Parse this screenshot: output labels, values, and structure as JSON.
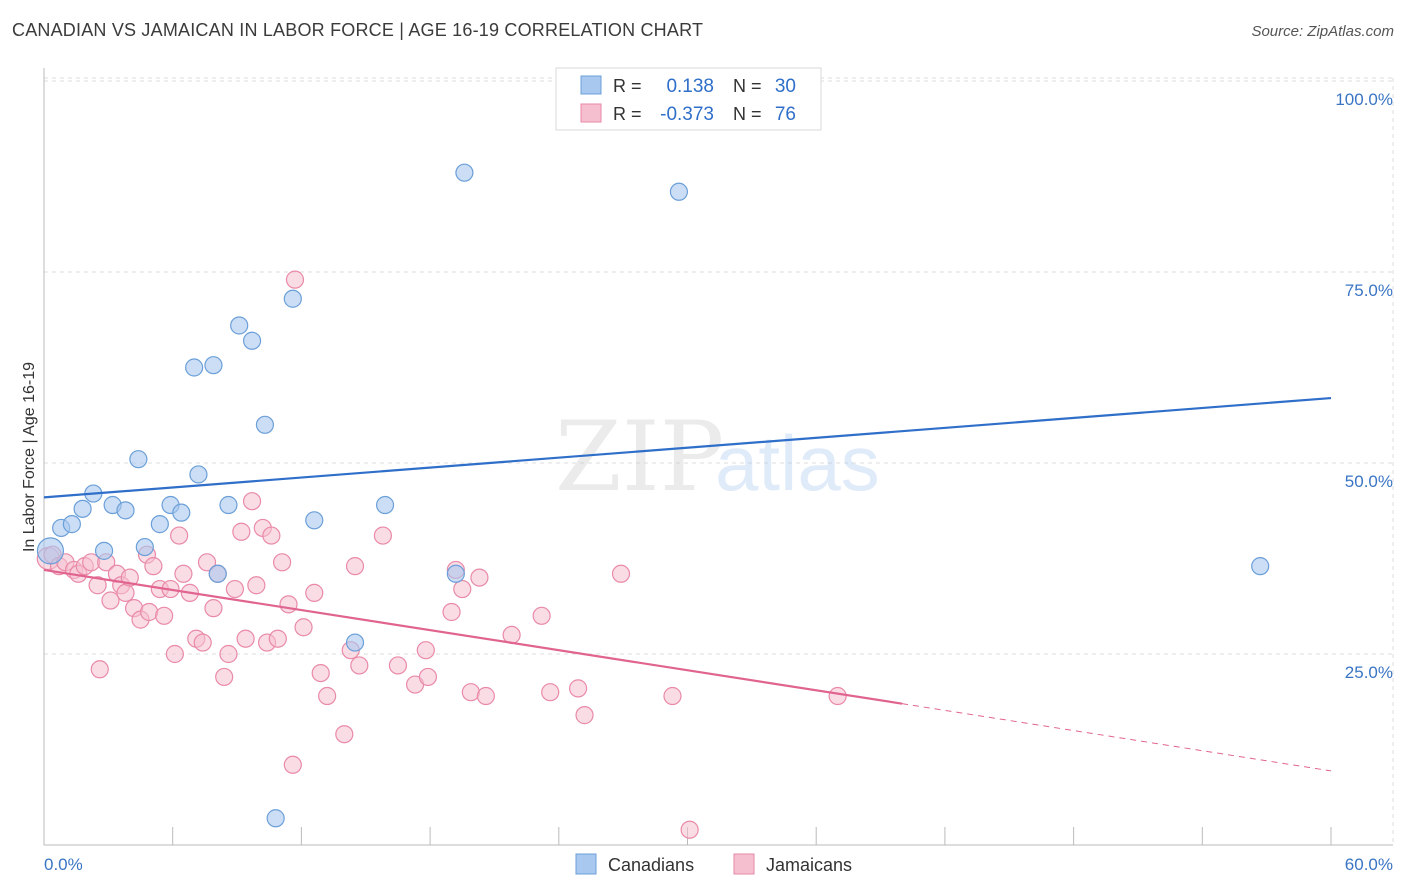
{
  "header": {
    "title": "CANADIAN VS JAMAICAN IN LABOR FORCE | AGE 16-19 CORRELATION CHART",
    "source": "Source: ZipAtlas.com"
  },
  "watermark": {
    "zip": "ZIP",
    "atlas": "atlas"
  },
  "colors": {
    "blue_fill": "#a9c8ef",
    "blue_stroke": "#6b9fd8",
    "blue_line": "#2f6fc9",
    "pink_fill": "#f6bfd0",
    "pink_stroke": "#e98aa8",
    "pink_line": "#e0648f",
    "tick_text": "#3a75c4",
    "grid": "#dddddd"
  },
  "chart_data": {
    "type": "scatter",
    "title": "CANADIAN VS JAMAICAN IN LABOR FORCE | AGE 16-19 CORRELATION CHART",
    "xlabel": "",
    "ylabel": "In Labor Force | Age 16-19",
    "xlim": [
      0,
      60
    ],
    "ylim": [
      0,
      105
    ],
    "x_tick_labels": [
      "0.0%",
      "60.0%"
    ],
    "y_ticks": [
      25,
      50,
      75,
      100
    ],
    "y_tick_labels": [
      "25.0%",
      "50.0%",
      "75.0%",
      "100.0%"
    ],
    "grid": true,
    "legend_position": "bottom-center",
    "stats_box": [
      {
        "r_label": "R =",
        "r_value": "0.138",
        "n_label": "N =",
        "n_value": "30"
      },
      {
        "r_label": "R =",
        "r_value": "-0.373",
        "n_label": "N =",
        "n_value": "76"
      }
    ],
    "series": [
      {
        "name": "Canadians",
        "color": "#6b9fd8",
        "trend": {
          "x0": 0,
          "y0": 45.5,
          "x1": 60,
          "y1": 58.5,
          "dashed_from": null
        },
        "points": [
          [
            0.3,
            38.5
          ],
          [
            0.8,
            41.5
          ],
          [
            1.3,
            42.0
          ],
          [
            1.8,
            44.0
          ],
          [
            2.3,
            46.0
          ],
          [
            2.8,
            38.5
          ],
          [
            3.2,
            44.5
          ],
          [
            3.8,
            43.8
          ],
          [
            4.4,
            50.5
          ],
          [
            4.7,
            39.0
          ],
          [
            5.4,
            42.0
          ],
          [
            5.9,
            44.5
          ],
          [
            6.4,
            43.5
          ],
          [
            7.0,
            62.5
          ],
          [
            7.2,
            48.5
          ],
          [
            7.9,
            62.8
          ],
          [
            8.1,
            35.5
          ],
          [
            8.6,
            44.5
          ],
          [
            9.1,
            68.0
          ],
          [
            9.7,
            66.0
          ],
          [
            10.3,
            55.0
          ],
          [
            10.8,
            3.5
          ],
          [
            11.6,
            71.5
          ],
          [
            12.6,
            42.5
          ],
          [
            14.5,
            26.5
          ],
          [
            15.9,
            44.5
          ],
          [
            19.2,
            35.5
          ],
          [
            19.6,
            88.0
          ],
          [
            29.6,
            85.5
          ],
          [
            56.7,
            36.5
          ]
        ]
      },
      {
        "name": "Jamaicans",
        "color": "#e98aa8",
        "trend": {
          "x0": 0,
          "y0": 36.0,
          "x1": 40,
          "y1": 18.5,
          "x2": 60,
          "y2": 9.7
        },
        "points": [
          [
            0.2,
            37.5
          ],
          [
            0.4,
            38.0
          ],
          [
            0.7,
            36.5
          ],
          [
            1.0,
            37.0
          ],
          [
            1.4,
            36.0
          ],
          [
            1.6,
            35.5
          ],
          [
            1.9,
            36.5
          ],
          [
            2.2,
            37.0
          ],
          [
            2.5,
            34.0
          ],
          [
            2.6,
            23.0
          ],
          [
            2.9,
            37.0
          ],
          [
            3.1,
            32.0
          ],
          [
            3.4,
            35.5
          ],
          [
            3.6,
            34.0
          ],
          [
            3.8,
            33.0
          ],
          [
            4.0,
            35.0
          ],
          [
            4.2,
            31.0
          ],
          [
            4.5,
            29.5
          ],
          [
            4.8,
            38.0
          ],
          [
            4.9,
            30.5
          ],
          [
            5.1,
            36.5
          ],
          [
            5.4,
            33.5
          ],
          [
            5.6,
            30.0
          ],
          [
            5.9,
            33.5
          ],
          [
            6.1,
            25.0
          ],
          [
            6.3,
            40.5
          ],
          [
            6.5,
            35.5
          ],
          [
            6.8,
            33.0
          ],
          [
            7.1,
            27.0
          ],
          [
            7.4,
            26.5
          ],
          [
            7.6,
            37.0
          ],
          [
            7.9,
            31.0
          ],
          [
            8.1,
            35.5
          ],
          [
            8.4,
            22.0
          ],
          [
            8.6,
            25.0
          ],
          [
            8.9,
            33.5
          ],
          [
            9.2,
            41.0
          ],
          [
            9.4,
            27.0
          ],
          [
            9.7,
            45.0
          ],
          [
            9.9,
            34.0
          ],
          [
            10.2,
            41.5
          ],
          [
            10.4,
            26.5
          ],
          [
            10.6,
            40.5
          ],
          [
            10.9,
            27.0
          ],
          [
            11.1,
            37.0
          ],
          [
            11.4,
            31.5
          ],
          [
            11.6,
            10.5
          ],
          [
            11.7,
            74.0
          ],
          [
            12.1,
            28.5
          ],
          [
            12.6,
            33.0
          ],
          [
            12.9,
            22.5
          ],
          [
            13.2,
            19.5
          ],
          [
            14.0,
            14.5
          ],
          [
            14.3,
            25.5
          ],
          [
            14.5,
            36.5
          ],
          [
            14.7,
            23.5
          ],
          [
            15.8,
            40.5
          ],
          [
            16.5,
            23.5
          ],
          [
            17.3,
            21.0
          ],
          [
            17.8,
            25.5
          ],
          [
            17.9,
            22.0
          ],
          [
            19.0,
            30.5
          ],
          [
            19.2,
            36.0
          ],
          [
            19.5,
            33.5
          ],
          [
            19.9,
            20.0
          ],
          [
            20.3,
            35.0
          ],
          [
            20.6,
            19.5
          ],
          [
            21.8,
            27.5
          ],
          [
            23.2,
            30.0
          ],
          [
            23.6,
            20.0
          ],
          [
            24.9,
            20.5
          ],
          [
            25.2,
            17.0
          ],
          [
            26.9,
            35.5
          ],
          [
            29.3,
            19.5
          ],
          [
            30.1,
            2.0
          ],
          [
            37.0,
            19.5
          ]
        ]
      }
    ]
  },
  "legend": {
    "items": [
      {
        "label": "Canadians"
      },
      {
        "label": "Jamaicans"
      }
    ]
  }
}
